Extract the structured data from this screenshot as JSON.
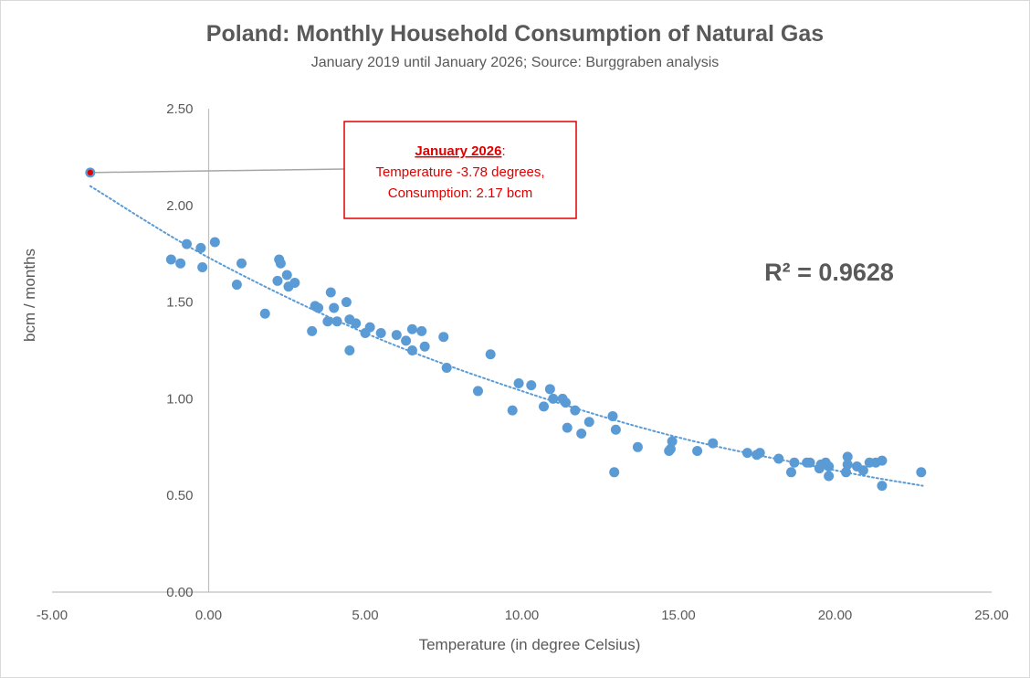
{
  "chart_data": {
    "type": "scatter",
    "title": "Poland: Monthly Household Consumption of Natural Gas",
    "subtitle": "January 2019 until January 2026; Source: Burggraben analysis",
    "xlabel": "Temperature (in degree Celsius)",
    "ylabel": "bcm / months",
    "xlim": [
      -5,
      25
    ],
    "ylim": [
      0,
      2.5
    ],
    "x_ticks": [
      -5,
      0,
      5,
      10,
      15,
      20,
      25
    ],
    "x_tick_labels": [
      "-5.00",
      "0.00",
      "5.00",
      "10.00",
      "15.00",
      "20.00",
      "25.00"
    ],
    "y_ticks": [
      0,
      0.5,
      1,
      1.5,
      2,
      2.5
    ],
    "y_tick_labels": [
      "0.00",
      "0.50",
      "1.00",
      "1.50",
      "2.00",
      "2.50"
    ],
    "series": [
      {
        "name": "Monthly consumption",
        "color": "#5b9bd5",
        "points": [
          [
            -1.2,
            1.72
          ],
          [
            -0.9,
            1.7
          ],
          [
            -0.7,
            1.8
          ],
          [
            -0.25,
            1.78
          ],
          [
            -0.2,
            1.68
          ],
          [
            0.2,
            1.81
          ],
          [
            0.9,
            1.59
          ],
          [
            1.05,
            1.7
          ],
          [
            1.8,
            1.44
          ],
          [
            2.2,
            1.61
          ],
          [
            2.25,
            1.72
          ],
          [
            2.3,
            1.7
          ],
          [
            2.5,
            1.64
          ],
          [
            2.55,
            1.58
          ],
          [
            2.75,
            1.6
          ],
          [
            3.3,
            1.35
          ],
          [
            3.4,
            1.48
          ],
          [
            3.5,
            1.47
          ],
          [
            3.8,
            1.4
          ],
          [
            3.9,
            1.55
          ],
          [
            4.0,
            1.47
          ],
          [
            4.1,
            1.4
          ],
          [
            4.4,
            1.5
          ],
          [
            4.5,
            1.41
          ],
          [
            4.5,
            1.25
          ],
          [
            4.7,
            1.39
          ],
          [
            5.0,
            1.34
          ],
          [
            5.15,
            1.37
          ],
          [
            5.5,
            1.34
          ],
          [
            6.0,
            1.33
          ],
          [
            6.3,
            1.3
          ],
          [
            6.5,
            1.36
          ],
          [
            6.5,
            1.25
          ],
          [
            6.8,
            1.35
          ],
          [
            6.9,
            1.27
          ],
          [
            7.5,
            1.32
          ],
          [
            7.6,
            1.16
          ],
          [
            8.6,
            1.04
          ],
          [
            9.0,
            1.23
          ],
          [
            9.7,
            0.94
          ],
          [
            9.9,
            1.08
          ],
          [
            10.3,
            1.07
          ],
          [
            10.7,
            0.96
          ],
          [
            10.9,
            1.05
          ],
          [
            11.0,
            1.0
          ],
          [
            11.3,
            1.0
          ],
          [
            11.4,
            0.98
          ],
          [
            11.45,
            0.85
          ],
          [
            11.7,
            0.94
          ],
          [
            11.9,
            0.82
          ],
          [
            12.15,
            0.88
          ],
          [
            12.9,
            0.91
          ],
          [
            13.0,
            0.84
          ],
          [
            12.95,
            0.62
          ],
          [
            13.7,
            0.75
          ],
          [
            14.7,
            0.73
          ],
          [
            14.75,
            0.74
          ],
          [
            14.8,
            0.78
          ],
          [
            15.6,
            0.73
          ],
          [
            16.1,
            0.77
          ],
          [
            17.2,
            0.72
          ],
          [
            17.5,
            0.71
          ],
          [
            17.6,
            0.72
          ],
          [
            18.2,
            0.69
          ],
          [
            18.6,
            0.62
          ],
          [
            18.7,
            0.67
          ],
          [
            19.1,
            0.67
          ],
          [
            19.2,
            0.67
          ],
          [
            19.5,
            0.64
          ],
          [
            19.55,
            0.66
          ],
          [
            19.7,
            0.67
          ],
          [
            19.8,
            0.65
          ],
          [
            19.8,
            0.6
          ],
          [
            20.4,
            0.7
          ],
          [
            20.4,
            0.66
          ],
          [
            20.35,
            0.62
          ],
          [
            20.7,
            0.65
          ],
          [
            20.9,
            0.63
          ],
          [
            21.1,
            0.67
          ],
          [
            21.3,
            0.67
          ],
          [
            21.5,
            0.68
          ],
          [
            21.5,
            0.55
          ],
          [
            22.75,
            0.62
          ]
        ]
      }
    ],
    "highlight_point": {
      "x": -3.78,
      "y": 2.17,
      "marker_color": "#e00000"
    },
    "trendline": {
      "type": "polynomial",
      "style": "dotted",
      "color": "#5b9bd5",
      "points": [
        [
          -3.78,
          2.1
        ],
        [
          0,
          1.73
        ],
        [
          5,
          1.34
        ],
        [
          10,
          1.04
        ],
        [
          15,
          0.8
        ],
        [
          20,
          0.63
        ],
        [
          22.8,
          0.55
        ]
      ]
    },
    "r_squared_label": "R² = 0.9628",
    "annotation": {
      "heading": "January 2026",
      "heading_suffix": ":",
      "line1": "Temperature -3.78 degrees,",
      "line2": "Consumption: 2.17 bcm",
      "text_color": "#e00000",
      "border_color": "#e00000"
    },
    "colors": {
      "axis": "#bfbfbf",
      "leader_line": "#a6a6a6",
      "text": "#595959"
    }
  }
}
